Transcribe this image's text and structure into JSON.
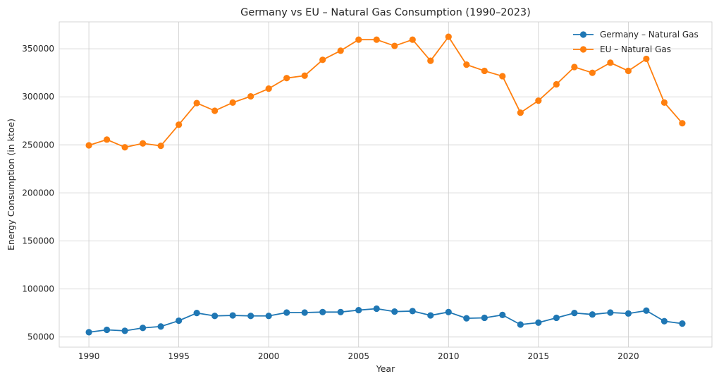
{
  "chart_data": {
    "type": "line",
    "title": "Germany vs EU – Natural Gas Consumption (1990–2023)",
    "xlabel": "Year",
    "ylabel": "Energy Consumption (in ktoe)",
    "x": [
      1990,
      1991,
      1992,
      1993,
      1994,
      1995,
      1996,
      1997,
      1998,
      1999,
      2000,
      2001,
      2002,
      2003,
      2004,
      2005,
      2006,
      2007,
      2008,
      2009,
      2010,
      2011,
      2012,
      2013,
      2014,
      2015,
      2016,
      2017,
      2018,
      2019,
      2020,
      2021,
      2022,
      2023
    ],
    "xlim": [
      1988.35,
      2024.65
    ],
    "ylim": [
      39500,
      378000
    ],
    "xticks": [
      1990,
      1995,
      2000,
      2005,
      2010,
      2015,
      2020
    ],
    "yticks": [
      50000,
      100000,
      150000,
      200000,
      250000,
      300000,
      350000
    ],
    "grid": true,
    "legend_position": "top-right",
    "series": [
      {
        "name": "Germany – Natural Gas",
        "color": "#1f77b4",
        "values": [
          55000,
          57500,
          56500,
          59500,
          61000,
          67000,
          75000,
          72000,
          72500,
          72000,
          72000,
          75500,
          75500,
          76000,
          76000,
          78000,
          79500,
          76500,
          77000,
          72500,
          76000,
          69500,
          70000,
          73000,
          63000,
          65000,
          70000,
          75000,
          73500,
          75500,
          74500,
          77500,
          66500,
          64000
        ]
      },
      {
        "name": "EU – Natural Gas",
        "color": "#ff7f0e",
        "values": [
          249500,
          255500,
          247500,
          251500,
          249000,
          271000,
          293500,
          285500,
          294000,
          300500,
          308500,
          319500,
          322000,
          338500,
          348000,
          359500,
          359500,
          353000,
          359500,
          337500,
          362500,
          333500,
          327000,
          321500,
          283500,
          296000,
          313000,
          331000,
          325000,
          335500,
          327000,
          339500,
          294000,
          272500
        ]
      }
    ]
  }
}
